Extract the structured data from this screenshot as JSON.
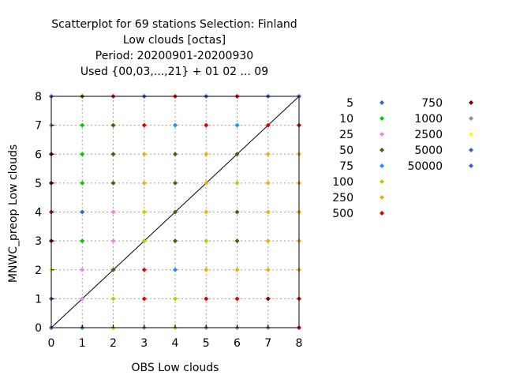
{
  "chart_data": {
    "type": "scatter",
    "title_lines": [
      "Scatterplot for   69 stations Selection: Finland",
      "Low clouds [octas]",
      "Period: 20200901-20200930",
      "Used {00,03,...,21} + 01 02 ... 09"
    ],
    "xlabel": "OBS Low clouds",
    "ylabel": "MNWC_preop Low clouds",
    "xlim": [
      0,
      8
    ],
    "ylim": [
      0,
      8
    ],
    "xticks": [
      "0",
      "1",
      "2",
      "3",
      "4",
      "5",
      "6",
      "7",
      "8"
    ],
    "yticks": [
      "0",
      "1",
      "2",
      "3",
      "4",
      "5",
      "6",
      "7",
      "8"
    ],
    "grid": true,
    "diagonal_line": true,
    "legend_position": "right",
    "legend": [
      {
        "label": "5",
        "color": "#3a5fcd"
      },
      {
        "label": "10",
        "color": "#00cc00"
      },
      {
        "label": "25",
        "color": "#ee82ee"
      },
      {
        "label": "50",
        "color": "#3a6b00"
      },
      {
        "label": "75",
        "color": "#1e90ff"
      },
      {
        "label": "100",
        "color": "#c8c800"
      },
      {
        "label": "250",
        "color": "#f0b400"
      },
      {
        "label": "500",
        "color": "#e00000"
      },
      {
        "label": "750",
        "color": "#7a0000"
      },
      {
        "label": "1000",
        "color": "#909090"
      },
      {
        "label": "2500",
        "color": "#ffff00"
      },
      {
        "label": "5000",
        "color": "#3a5fcd"
      },
      {
        "label": "50000",
        "color": "#3a5fcd"
      }
    ],
    "points": [
      {
        "x": 0,
        "y": 0,
        "c": "#3a5fcd"
      },
      {
        "x": 0,
        "y": 1,
        "c": "#3a5fcd"
      },
      {
        "x": 0,
        "y": 2,
        "c": "#ffff00"
      },
      {
        "x": 0,
        "y": 3,
        "c": "#7a0000"
      },
      {
        "x": 0,
        "y": 4,
        "c": "#e00000"
      },
      {
        "x": 0,
        "y": 5,
        "c": "#7a0000"
      },
      {
        "x": 0,
        "y": 6,
        "c": "#7a0000"
      },
      {
        "x": 0,
        "y": 7,
        "c": "#909090"
      },
      {
        "x": 0,
        "y": 8,
        "c": "#3a5fcd"
      },
      {
        "x": 1,
        "y": 0,
        "c": "#1e90ff"
      },
      {
        "x": 1,
        "y": 1,
        "c": "#ee82ee"
      },
      {
        "x": 1,
        "y": 2,
        "c": "#ee82ee"
      },
      {
        "x": 1,
        "y": 3,
        "c": "#00cc00"
      },
      {
        "x": 1,
        "y": 4,
        "c": "#3a5fcd"
      },
      {
        "x": 1,
        "y": 5,
        "c": "#00cc00"
      },
      {
        "x": 1,
        "y": 6,
        "c": "#00cc00"
      },
      {
        "x": 1,
        "y": 7,
        "c": "#00cc00"
      },
      {
        "x": 1,
        "y": 8,
        "c": "#3a6b00"
      },
      {
        "x": 2,
        "y": 0,
        "c": "#f0b400"
      },
      {
        "x": 2,
        "y": 1,
        "c": "#c8c800"
      },
      {
        "x": 2,
        "y": 2,
        "c": "#3a6b00"
      },
      {
        "x": 2,
        "y": 3,
        "c": "#ee82ee"
      },
      {
        "x": 2,
        "y": 4,
        "c": "#ee82ee"
      },
      {
        "x": 2,
        "y": 5,
        "c": "#3a6b00"
      },
      {
        "x": 2,
        "y": 6,
        "c": "#3a6b00"
      },
      {
        "x": 2,
        "y": 7,
        "c": "#3a6b00"
      },
      {
        "x": 2,
        "y": 8,
        "c": "#e00000"
      },
      {
        "x": 3,
        "y": 0,
        "c": "#909090"
      },
      {
        "x": 3,
        "y": 1,
        "c": "#e00000"
      },
      {
        "x": 3,
        "y": 2,
        "c": "#e00000"
      },
      {
        "x": 3,
        "y": 3,
        "c": "#c8c800"
      },
      {
        "x": 3,
        "y": 4,
        "c": "#c8c800"
      },
      {
        "x": 3,
        "y": 5,
        "c": "#f0b400"
      },
      {
        "x": 3,
        "y": 6,
        "c": "#f0b400"
      },
      {
        "x": 3,
        "y": 7,
        "c": "#e00000"
      },
      {
        "x": 3,
        "y": 8,
        "c": "#3a5fcd"
      },
      {
        "x": 4,
        "y": 0,
        "c": "#f0b400"
      },
      {
        "x": 4,
        "y": 1,
        "c": "#c8c800"
      },
      {
        "x": 4,
        "y": 2,
        "c": "#1e90ff"
      },
      {
        "x": 4,
        "y": 3,
        "c": "#3a6b00"
      },
      {
        "x": 4,
        "y": 4,
        "c": "#3a6b00"
      },
      {
        "x": 4,
        "y": 5,
        "c": "#3a6b00"
      },
      {
        "x": 4,
        "y": 6,
        "c": "#3a6b00"
      },
      {
        "x": 4,
        "y": 7,
        "c": "#1e90ff"
      },
      {
        "x": 4,
        "y": 8,
        "c": "#e00000"
      },
      {
        "x": 5,
        "y": 0,
        "c": "#909090"
      },
      {
        "x": 5,
        "y": 1,
        "c": "#e00000"
      },
      {
        "x": 5,
        "y": 2,
        "c": "#f0b400"
      },
      {
        "x": 5,
        "y": 3,
        "c": "#c8c800"
      },
      {
        "x": 5,
        "y": 4,
        "c": "#f0b400"
      },
      {
        "x": 5,
        "y": 5,
        "c": "#f0b400"
      },
      {
        "x": 5,
        "y": 6,
        "c": "#f0b400"
      },
      {
        "x": 5,
        "y": 7,
        "c": "#e00000"
      },
      {
        "x": 5,
        "y": 8,
        "c": "#3a5fcd"
      },
      {
        "x": 6,
        "y": 0,
        "c": "#909090"
      },
      {
        "x": 6,
        "y": 1,
        "c": "#e00000"
      },
      {
        "x": 6,
        "y": 2,
        "c": "#f0b400"
      },
      {
        "x": 6,
        "y": 3,
        "c": "#3a6b00"
      },
      {
        "x": 6,
        "y": 4,
        "c": "#3a6b00"
      },
      {
        "x": 6,
        "y": 5,
        "c": "#c8c800"
      },
      {
        "x": 6,
        "y": 6,
        "c": "#3a6b00"
      },
      {
        "x": 6,
        "y": 7,
        "c": "#1e90ff"
      },
      {
        "x": 6,
        "y": 8,
        "c": "#e00000"
      },
      {
        "x": 7,
        "y": 0,
        "c": "#909090"
      },
      {
        "x": 7,
        "y": 1,
        "c": "#7a0000"
      },
      {
        "x": 7,
        "y": 2,
        "c": "#f0b400"
      },
      {
        "x": 7,
        "y": 3,
        "c": "#f0b400"
      },
      {
        "x": 7,
        "y": 4,
        "c": "#f0b400"
      },
      {
        "x": 7,
        "y": 5,
        "c": "#f0b400"
      },
      {
        "x": 7,
        "y": 6,
        "c": "#f0b400"
      },
      {
        "x": 7,
        "y": 7,
        "c": "#e00000"
      },
      {
        "x": 7,
        "y": 8,
        "c": "#3a5fcd"
      },
      {
        "x": 8,
        "y": 0,
        "c": "#e00000"
      },
      {
        "x": 8,
        "y": 1,
        "c": "#e00000"
      },
      {
        "x": 8,
        "y": 2,
        "c": "#f0b400"
      },
      {
        "x": 8,
        "y": 3,
        "c": "#f0b400"
      },
      {
        "x": 8,
        "y": 4,
        "c": "#f0b400"
      },
      {
        "x": 8,
        "y": 5,
        "c": "#f0b400"
      },
      {
        "x": 8,
        "y": 6,
        "c": "#f0b400"
      },
      {
        "x": 8,
        "y": 7,
        "c": "#e00000"
      },
      {
        "x": 8,
        "y": 8,
        "c": "#3a5fcd"
      }
    ]
  }
}
